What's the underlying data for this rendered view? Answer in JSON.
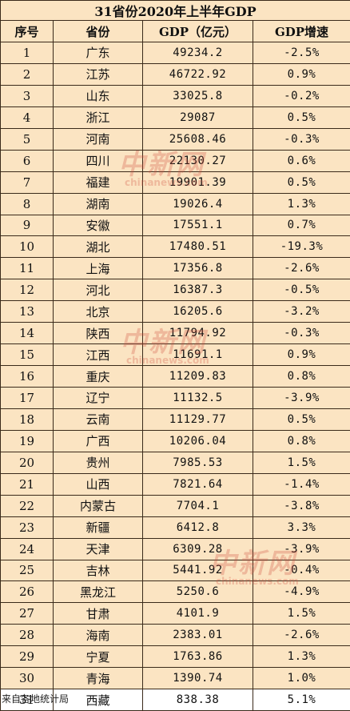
{
  "title": "31省份2020年上半年GDP",
  "headers": [
    "序号",
    "省份",
    "GDP（亿元）",
    "GDP增速"
  ],
  "rows": [
    {
      "no": "1",
      "province": "广东",
      "gdp": "49234.2",
      "rate": "-2.5%"
    },
    {
      "no": "2",
      "province": "江苏",
      "gdp": "46722.92",
      "rate": "0.9%"
    },
    {
      "no": "3",
      "province": "山东",
      "gdp": "33025.8",
      "rate": "-0.2%"
    },
    {
      "no": "4",
      "province": "浙江",
      "gdp": "29087",
      "rate": "0.5%"
    },
    {
      "no": "5",
      "province": "河南",
      "gdp": "25608.46",
      "rate": "-0.3%"
    },
    {
      "no": "6",
      "province": "四川",
      "gdp": "22130.27",
      "rate": "0.6%"
    },
    {
      "no": "7",
      "province": "福建",
      "gdp": "19901.39",
      "rate": "0.5%"
    },
    {
      "no": "8",
      "province": "湖南",
      "gdp": "19026.4",
      "rate": "1.3%"
    },
    {
      "no": "9",
      "province": "安徽",
      "gdp": "17551.1",
      "rate": "0.7%"
    },
    {
      "no": "10",
      "province": "湖北",
      "gdp": "17480.51",
      "rate": "-19.3%"
    },
    {
      "no": "11",
      "province": "上海",
      "gdp": "17356.8",
      "rate": "-2.6%"
    },
    {
      "no": "12",
      "province": "河北",
      "gdp": "16387.3",
      "rate": "-0.5%"
    },
    {
      "no": "13",
      "province": "北京",
      "gdp": "16205.6",
      "rate": "-3.2%"
    },
    {
      "no": "14",
      "province": "陕西",
      "gdp": "11794.92",
      "rate": "-0.3%"
    },
    {
      "no": "15",
      "province": "江西",
      "gdp": "11691.1",
      "rate": "0.9%"
    },
    {
      "no": "16",
      "province": "重庆",
      "gdp": "11209.83",
      "rate": "0.8%"
    },
    {
      "no": "17",
      "province": "辽宁",
      "gdp": "11132.5",
      "rate": "-3.9%"
    },
    {
      "no": "18",
      "province": "云南",
      "gdp": "11129.77",
      "rate": "0.5%"
    },
    {
      "no": "19",
      "province": "广西",
      "gdp": "10206.04",
      "rate": "0.8%"
    },
    {
      "no": "20",
      "province": "贵州",
      "gdp": "7985.53",
      "rate": "1.5%"
    },
    {
      "no": "21",
      "province": "山西",
      "gdp": "7821.64",
      "rate": "-1.4%"
    },
    {
      "no": "22",
      "province": "内蒙古",
      "gdp": "7704.1",
      "rate": "-3.8%"
    },
    {
      "no": "23",
      "province": "新疆",
      "gdp": "6412.8",
      "rate": "3.3%"
    },
    {
      "no": "24",
      "province": "天津",
      "gdp": "6309.28",
      "rate": "-3.9%"
    },
    {
      "no": "25",
      "province": "吉林",
      "gdp": "5441.92",
      "rate": "-0.4%"
    },
    {
      "no": "26",
      "province": "黑龙江",
      "gdp": "5250.6",
      "rate": "-4.9%"
    },
    {
      "no": "27",
      "province": "甘肃",
      "gdp": "4101.9",
      "rate": "1.5%"
    },
    {
      "no": "28",
      "province": "海南",
      "gdp": "2383.01",
      "rate": "-2.6%"
    },
    {
      "no": "29",
      "province": "宁夏",
      "gdp": "1763.86",
      "rate": "1.3%"
    },
    {
      "no": "30",
      "province": "青海",
      "gdp": "1390.74",
      "rate": "1.0%"
    },
    {
      "no": "31",
      "province": "西藏",
      "gdp": "838.38",
      "rate": "5.1%"
    }
  ],
  "source": "来自各地统计局",
  "watermark": {
    "cn": "中新网",
    "en": "chinanews.com"
  },
  "colors": {
    "background": "#fbe4c2",
    "border": "#3a2a1a",
    "watermark": "#d04a3a"
  }
}
